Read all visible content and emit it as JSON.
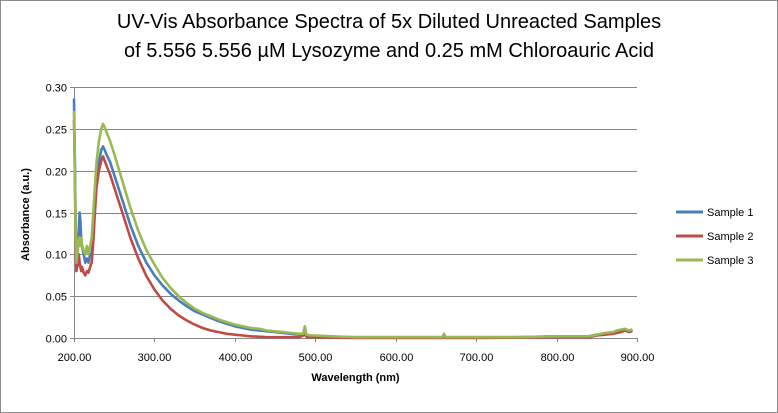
{
  "chart_data": {
    "type": "line",
    "title_line1": "UV-Vis Absorbance Spectra of 5x Diluted Unreacted Samples",
    "title_line2": "of 5.556 5.556 µM Lysozyme and 0.25 mM Chloroauric Acid",
    "xlabel": "Wavelength (nm)",
    "ylabel": "Absorbance (a.u.)",
    "xlim": [
      200,
      900
    ],
    "ylim": [
      0,
      0.3
    ],
    "x_ticks": [
      "200.00",
      "300.00",
      "400.00",
      "500.00",
      "600.00",
      "700.00",
      "800.00",
      "900.00"
    ],
    "y_ticks": [
      "0.00",
      "0.05",
      "0.10",
      "0.15",
      "0.20",
      "0.25",
      "0.30"
    ],
    "grid": "horizontal",
    "legend_position": "right",
    "series": [
      {
        "name": "Sample 1",
        "color": "#4a7ebb",
        "points": [
          [
            200,
            0.285
          ],
          [
            201,
            0.22
          ],
          [
            202,
            0.14
          ],
          [
            203,
            0.09
          ],
          [
            205,
            0.11
          ],
          [
            206,
            0.13
          ],
          [
            207,
            0.15
          ],
          [
            208,
            0.14
          ],
          [
            209,
            0.12
          ],
          [
            210,
            0.11
          ],
          [
            212,
            0.1
          ],
          [
            214,
            0.09
          ],
          [
            216,
            0.095
          ],
          [
            218,
            0.09
          ],
          [
            220,
            0.1
          ],
          [
            222,
            0.1
          ],
          [
            224,
            0.13
          ],
          [
            226,
            0.16
          ],
          [
            228,
            0.19
          ],
          [
            231,
            0.21
          ],
          [
            234,
            0.225
          ],
          [
            236,
            0.229
          ],
          [
            238,
            0.225
          ],
          [
            240,
            0.22
          ],
          [
            245,
            0.21
          ],
          [
            250,
            0.195
          ],
          [
            260,
            0.165
          ],
          [
            270,
            0.135
          ],
          [
            280,
            0.11
          ],
          [
            290,
            0.09
          ],
          [
            300,
            0.075
          ],
          [
            310,
            0.063
          ],
          [
            320,
            0.053
          ],
          [
            330,
            0.045
          ],
          [
            340,
            0.038
          ],
          [
            350,
            0.032
          ],
          [
            360,
            0.028
          ],
          [
            370,
            0.024
          ],
          [
            380,
            0.02
          ],
          [
            390,
            0.017
          ],
          [
            400,
            0.014
          ],
          [
            410,
            0.012
          ],
          [
            420,
            0.01
          ],
          [
            430,
            0.009
          ],
          [
            440,
            0.008
          ],
          [
            450,
            0.007
          ],
          [
            460,
            0.006
          ],
          [
            470,
            0.005
          ],
          [
            480,
            0.004
          ],
          [
            485,
            0.004
          ],
          [
            487,
            0.012
          ],
          [
            489,
            0.003
          ],
          [
            495,
            0.002
          ],
          [
            500,
            0.002
          ],
          [
            520,
            0.001
          ],
          [
            550,
            0.001
          ],
          [
            600,
            0.001
          ],
          [
            658,
            0.001
          ],
          [
            660,
            0.004
          ],
          [
            662,
            0.001
          ],
          [
            700,
            0.001
          ],
          [
            750,
            0.001
          ],
          [
            800,
            0.002
          ],
          [
            840,
            0.002
          ],
          [
            850,
            0.004
          ],
          [
            860,
            0.005
          ],
          [
            870,
            0.006
          ],
          [
            875,
            0.008
          ],
          [
            880,
            0.009
          ],
          [
            885,
            0.01
          ],
          [
            890,
            0.008
          ],
          [
            893,
            0.009
          ]
        ]
      },
      {
        "name": "Sample 2",
        "color": "#be4b48",
        "points": [
          [
            200,
            0.26
          ],
          [
            201,
            0.2
          ],
          [
            202,
            0.12
          ],
          [
            203,
            0.08
          ],
          [
            205,
            0.09
          ],
          [
            206,
            0.1
          ],
          [
            207,
            0.09
          ],
          [
            208,
            0.085
          ],
          [
            209,
            0.08
          ],
          [
            210,
            0.085
          ],
          [
            212,
            0.078
          ],
          [
            214,
            0.075
          ],
          [
            216,
            0.08
          ],
          [
            218,
            0.078
          ],
          [
            220,
            0.085
          ],
          [
            222,
            0.09
          ],
          [
            224,
            0.115
          ],
          [
            226,
            0.15
          ],
          [
            228,
            0.18
          ],
          [
            231,
            0.2
          ],
          [
            234,
            0.212
          ],
          [
            236,
            0.217
          ],
          [
            238,
            0.212
          ],
          [
            240,
            0.207
          ],
          [
            245,
            0.195
          ],
          [
            250,
            0.18
          ],
          [
            260,
            0.15
          ],
          [
            270,
            0.12
          ],
          [
            280,
            0.095
          ],
          [
            290,
            0.074
          ],
          [
            300,
            0.058
          ],
          [
            310,
            0.045
          ],
          [
            320,
            0.035
          ],
          [
            330,
            0.027
          ],
          [
            340,
            0.021
          ],
          [
            350,
            0.016
          ],
          [
            360,
            0.012
          ],
          [
            370,
            0.009
          ],
          [
            380,
            0.007
          ],
          [
            390,
            0.005
          ],
          [
            400,
            0.004
          ],
          [
            410,
            0.003
          ],
          [
            420,
            0.002
          ],
          [
            440,
            0.001
          ],
          [
            460,
            0.001
          ],
          [
            480,
            0.001
          ],
          [
            487,
            0.004
          ],
          [
            490,
            0.001
          ],
          [
            550,
            0
          ],
          [
            600,
            0
          ],
          [
            658,
            0
          ],
          [
            660,
            0.003
          ],
          [
            662,
            0
          ],
          [
            700,
            0
          ],
          [
            800,
            0.001
          ],
          [
            840,
            0.001
          ],
          [
            850,
            0.003
          ],
          [
            860,
            0.004
          ],
          [
            870,
            0.005
          ],
          [
            880,
            0.007
          ],
          [
            885,
            0.009
          ],
          [
            890,
            0.007
          ],
          [
            893,
            0.008
          ]
        ]
      },
      {
        "name": "Sample 3",
        "color": "#98b954",
        "points": [
          [
            200,
            0.27
          ],
          [
            201,
            0.21
          ],
          [
            202,
            0.13
          ],
          [
            203,
            0.09
          ],
          [
            205,
            0.11
          ],
          [
            206,
            0.12
          ],
          [
            207,
            0.115
          ],
          [
            208,
            0.11
          ],
          [
            209,
            0.12
          ],
          [
            210,
            0.11
          ],
          [
            212,
            0.105
          ],
          [
            214,
            0.1
          ],
          [
            216,
            0.11
          ],
          [
            218,
            0.1
          ],
          [
            220,
            0.11
          ],
          [
            222,
            0.12
          ],
          [
            224,
            0.15
          ],
          [
            226,
            0.18
          ],
          [
            228,
            0.21
          ],
          [
            231,
            0.235
          ],
          [
            234,
            0.25
          ],
          [
            236,
            0.256
          ],
          [
            238,
            0.252
          ],
          [
            240,
            0.247
          ],
          [
            245,
            0.235
          ],
          [
            250,
            0.22
          ],
          [
            260,
            0.188
          ],
          [
            270,
            0.156
          ],
          [
            280,
            0.128
          ],
          [
            290,
            0.105
          ],
          [
            300,
            0.088
          ],
          [
            310,
            0.072
          ],
          [
            320,
            0.06
          ],
          [
            330,
            0.05
          ],
          [
            340,
            0.042
          ],
          [
            350,
            0.035
          ],
          [
            360,
            0.03
          ],
          [
            370,
            0.026
          ],
          [
            380,
            0.022
          ],
          [
            390,
            0.019
          ],
          [
            400,
            0.016
          ],
          [
            410,
            0.014
          ],
          [
            420,
            0.012
          ],
          [
            430,
            0.011
          ],
          [
            440,
            0.009
          ],
          [
            450,
            0.008
          ],
          [
            460,
            0.007
          ],
          [
            470,
            0.006
          ],
          [
            480,
            0.005
          ],
          [
            485,
            0.005
          ],
          [
            487,
            0.014
          ],
          [
            489,
            0.004
          ],
          [
            495,
            0.003
          ],
          [
            500,
            0.003
          ],
          [
            520,
            0.002
          ],
          [
            550,
            0.001
          ],
          [
            600,
            0.001
          ],
          [
            658,
            0.001
          ],
          [
            660,
            0.005
          ],
          [
            662,
            0.001
          ],
          [
            700,
            0.001
          ],
          [
            750,
            0.001
          ],
          [
            800,
            0.002
          ],
          [
            840,
            0.002
          ],
          [
            850,
            0.004
          ],
          [
            860,
            0.006
          ],
          [
            870,
            0.007
          ],
          [
            875,
            0.009
          ],
          [
            880,
            0.01
          ],
          [
            885,
            0.011
          ],
          [
            890,
            0.009
          ],
          [
            893,
            0.01
          ]
        ]
      }
    ]
  }
}
